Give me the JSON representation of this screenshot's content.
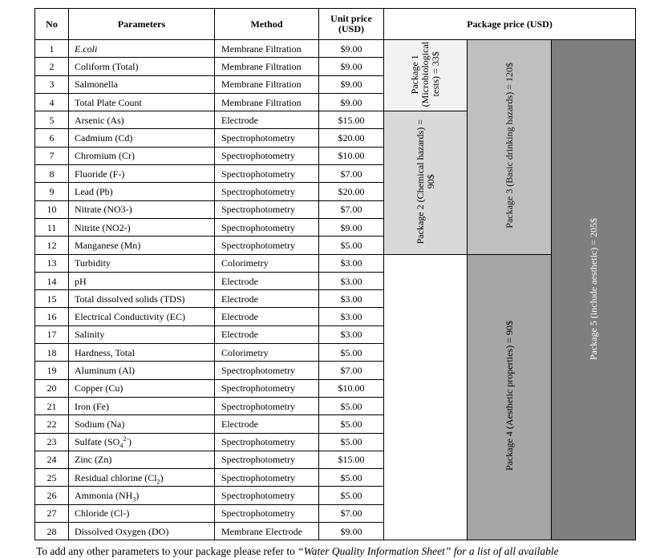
{
  "header": {
    "no": "No",
    "parameters": "Parameters",
    "method": "Method",
    "unit_price_line1": "Unit price",
    "unit_price_line2": "(USD)",
    "package_price": "Package price (USD)"
  },
  "rows": [
    {
      "no": "1",
      "parameter": "E.coli",
      "method": "Membrane Filtration",
      "price": "$9.00"
    },
    {
      "no": "2",
      "parameter": "Coliform (Total)",
      "method": "Membrane Filtration",
      "price": "$9.00"
    },
    {
      "no": "3",
      "parameter": "Salmonella",
      "method": "Membrane Filtration",
      "price": "$9.00"
    },
    {
      "no": "4",
      "parameter": "Total Plate Count",
      "method": "Membrane Filtration",
      "price": "$9.00"
    },
    {
      "no": "5",
      "parameter": "Arsenic (As)",
      "method": "Electrode",
      "price": "$15.00"
    },
    {
      "no": "6",
      "parameter": "Cadmium (Cd)",
      "method": "Spectrophotometry",
      "price": "$20.00"
    },
    {
      "no": "7",
      "parameter": "Chromium (Cr)",
      "method": "Spectrophotometry",
      "price": "$10.00"
    },
    {
      "no": "8",
      "parameter": "Fluoride (F-)",
      "method": "Spectrophotometry",
      "price": "$7.00"
    },
    {
      "no": "9",
      "parameter": "Lead (Pb)",
      "method": "Spectrophotometry",
      "price": "$20.00"
    },
    {
      "no": "10",
      "parameter": "Nitrate (NO3-)",
      "method": "Spectrophotometry",
      "price": "$7.00"
    },
    {
      "no": "11",
      "parameter": "Nitrite (NO2-)",
      "method": "Spectrophotometry",
      "price": "$9.00"
    },
    {
      "no": "12",
      "parameter": "Manganese (Mn)",
      "method": "Spectrophotometry",
      "price": "$5.00"
    },
    {
      "no": "13",
      "parameter": "Turbidity",
      "method": "Colorimetry",
      "price": "$3.00"
    },
    {
      "no": "14",
      "parameter": "pH",
      "method": "Electrode",
      "price": "$3.00"
    },
    {
      "no": "15",
      "parameter": "Total dissolved solids (TDS)",
      "method": "Electrode",
      "price": "$3.00"
    },
    {
      "no": "16",
      "parameter": "Electrical Conductivity (EC)",
      "method": "Electrode",
      "price": "$3.00"
    },
    {
      "no": "17",
      "parameter": "Salinity",
      "method": "Electrode",
      "price": "$3.00"
    },
    {
      "no": "18",
      "parameter": "Hardness, Total",
      "method": "Colorimetry",
      "price": "$5.00"
    },
    {
      "no": "19",
      "parameter": "Aluminum (Al)",
      "method": "Spectrophotometry",
      "price": "$7.00"
    },
    {
      "no": "20",
      "parameter": "Copper (Cu)",
      "method": "Spectrophotometry",
      "price": "$10.00"
    },
    {
      "no": "21",
      "parameter": "Iron (Fe)",
      "method": "Spectrophotometry",
      "price": "$5.00"
    },
    {
      "no": "22",
      "parameter": "Sodium (Na)",
      "method": "Electrode",
      "price": "$5.00"
    },
    {
      "no": "23",
      "parameter": "Sulfate (SO",
      "parameter_sub": "4",
      "parameter_sup": "2-",
      "parameter_tail": ")",
      "method": "Spectrophotometry",
      "price": "$5.00"
    },
    {
      "no": "24",
      "parameter": "Zinc (Zn)",
      "method": "Spectrophotometry",
      "price": "$15.00"
    },
    {
      "no": "25",
      "parameter": "Residual chlorine (Cl",
      "parameter_sub": "2",
      "parameter_tail": ")",
      "method": "Spectrophotometry",
      "price": "$5.00"
    },
    {
      "no": "26",
      "parameter": "Ammonia (NH",
      "parameter_sub": "3",
      "parameter_tail": ")",
      "method": "Spectrophotometry",
      "price": "$5.00"
    },
    {
      "no": "27",
      "parameter": "Chloride (Cl-)",
      "method": "Spectrophotometry",
      "price": "$7.00"
    },
    {
      "no": "28",
      "parameter": "Dissolved Oxygen (DO)",
      "method": "Membrane Electrode",
      "price": "$9.00"
    }
  ],
  "packages": {
    "p1": {
      "line1": "Package 1",
      "line2": "(Microbiological",
      "line3": "tests) = 33$",
      "color": "#f2f2f2",
      "rows": 4
    },
    "p2": {
      "line1": "Package 2 (Chemical hazards) =",
      "line2": "90$",
      "color": "#d9d9d9",
      "rows": 8
    },
    "p3": {
      "label": "Package 3 (Basic drinking hazards) = 120$",
      "color": "#bfbfbf",
      "rows": 12
    },
    "p4": {
      "label": "Package 4 (Aesthetic properties) = 90$",
      "color": "#a6a6a6",
      "rows": 16
    },
    "p5": {
      "label": "Package 5 (include aesthetic) = 205$",
      "color": "#7f7f7f",
      "rows": 28
    }
  },
  "footnote": {
    "prefix": "To add any other parameters to your package please refer to ",
    "reference": "“Water Quality Information Sheet” for a list of all available"
  }
}
